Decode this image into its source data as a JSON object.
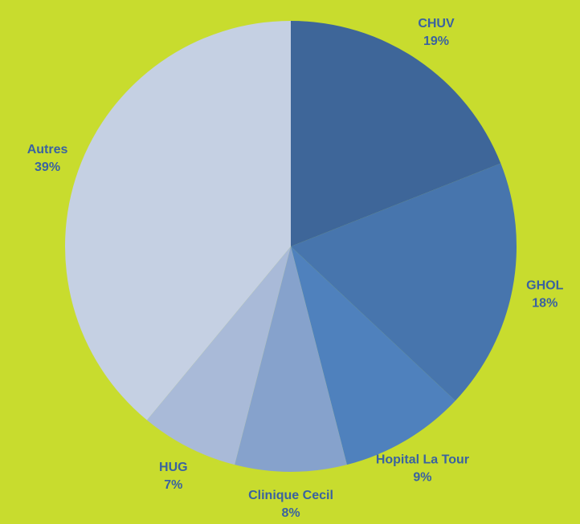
{
  "chart_data": {
    "type": "pie",
    "categories": [
      "CHUV",
      "GHOL",
      "Hopital La Tour",
      "Clinique Cecil",
      "HUG",
      "Autres"
    ],
    "values": [
      19,
      18,
      9,
      8,
      7,
      39
    ],
    "value_labels": [
      "19%",
      "18%",
      "9%",
      "8%",
      "7%",
      "39%"
    ],
    "colors": [
      "#3e6699",
      "#4775ad",
      "#4f81bd",
      "#86a2cc",
      "#a9bad8",
      "#c5d0e3"
    ]
  }
}
